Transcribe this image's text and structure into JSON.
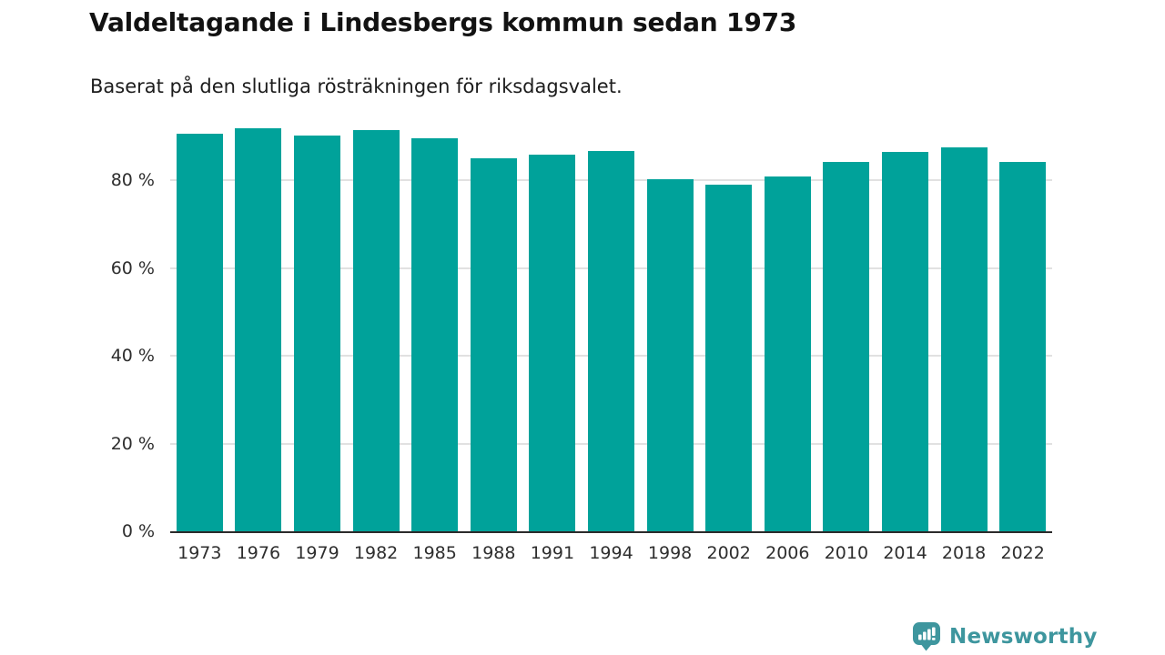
{
  "header": {
    "title": "Valdeltagande i Lindesbergs kommun sedan 1973",
    "subtitle": "Baserat på den slutliga rösträkningen för riksdagsvalet."
  },
  "chart_data": {
    "type": "bar",
    "title": "Valdeltagande i Lindesbergs kommun sedan 1973",
    "subtitle": "Baserat på den slutliga rösträkningen för riksdagsvalet.",
    "categories": [
      "1973",
      "1976",
      "1979",
      "1982",
      "1985",
      "1988",
      "1991",
      "1994",
      "1998",
      "2002",
      "2006",
      "2010",
      "2014",
      "2018",
      "2022"
    ],
    "values": [
      90.7,
      91.9,
      90.3,
      91.4,
      89.7,
      85.1,
      85.8,
      86.8,
      80.3,
      79.1,
      80.9,
      84.3,
      86.6,
      87.5,
      84.3
    ],
    "unit": "%",
    "ylim": [
      0,
      100
    ],
    "ytick_values": [
      0,
      20,
      40,
      60,
      80
    ],
    "ytick_labels": [
      "0 %",
      "20 %",
      "40 %",
      "60 %",
      "80 %"
    ],
    "xlabel": "",
    "ylabel": "",
    "grid": true,
    "legend": "none",
    "bar_color": "#00a29a",
    "axis_color": "#2b2b2b",
    "gridline_color": "#e1e1e1"
  },
  "branding": {
    "logo_text": "Newsworthy",
    "logo_color": "#3e969e",
    "logo_icon": "bar-chart-speech-bubble"
  }
}
